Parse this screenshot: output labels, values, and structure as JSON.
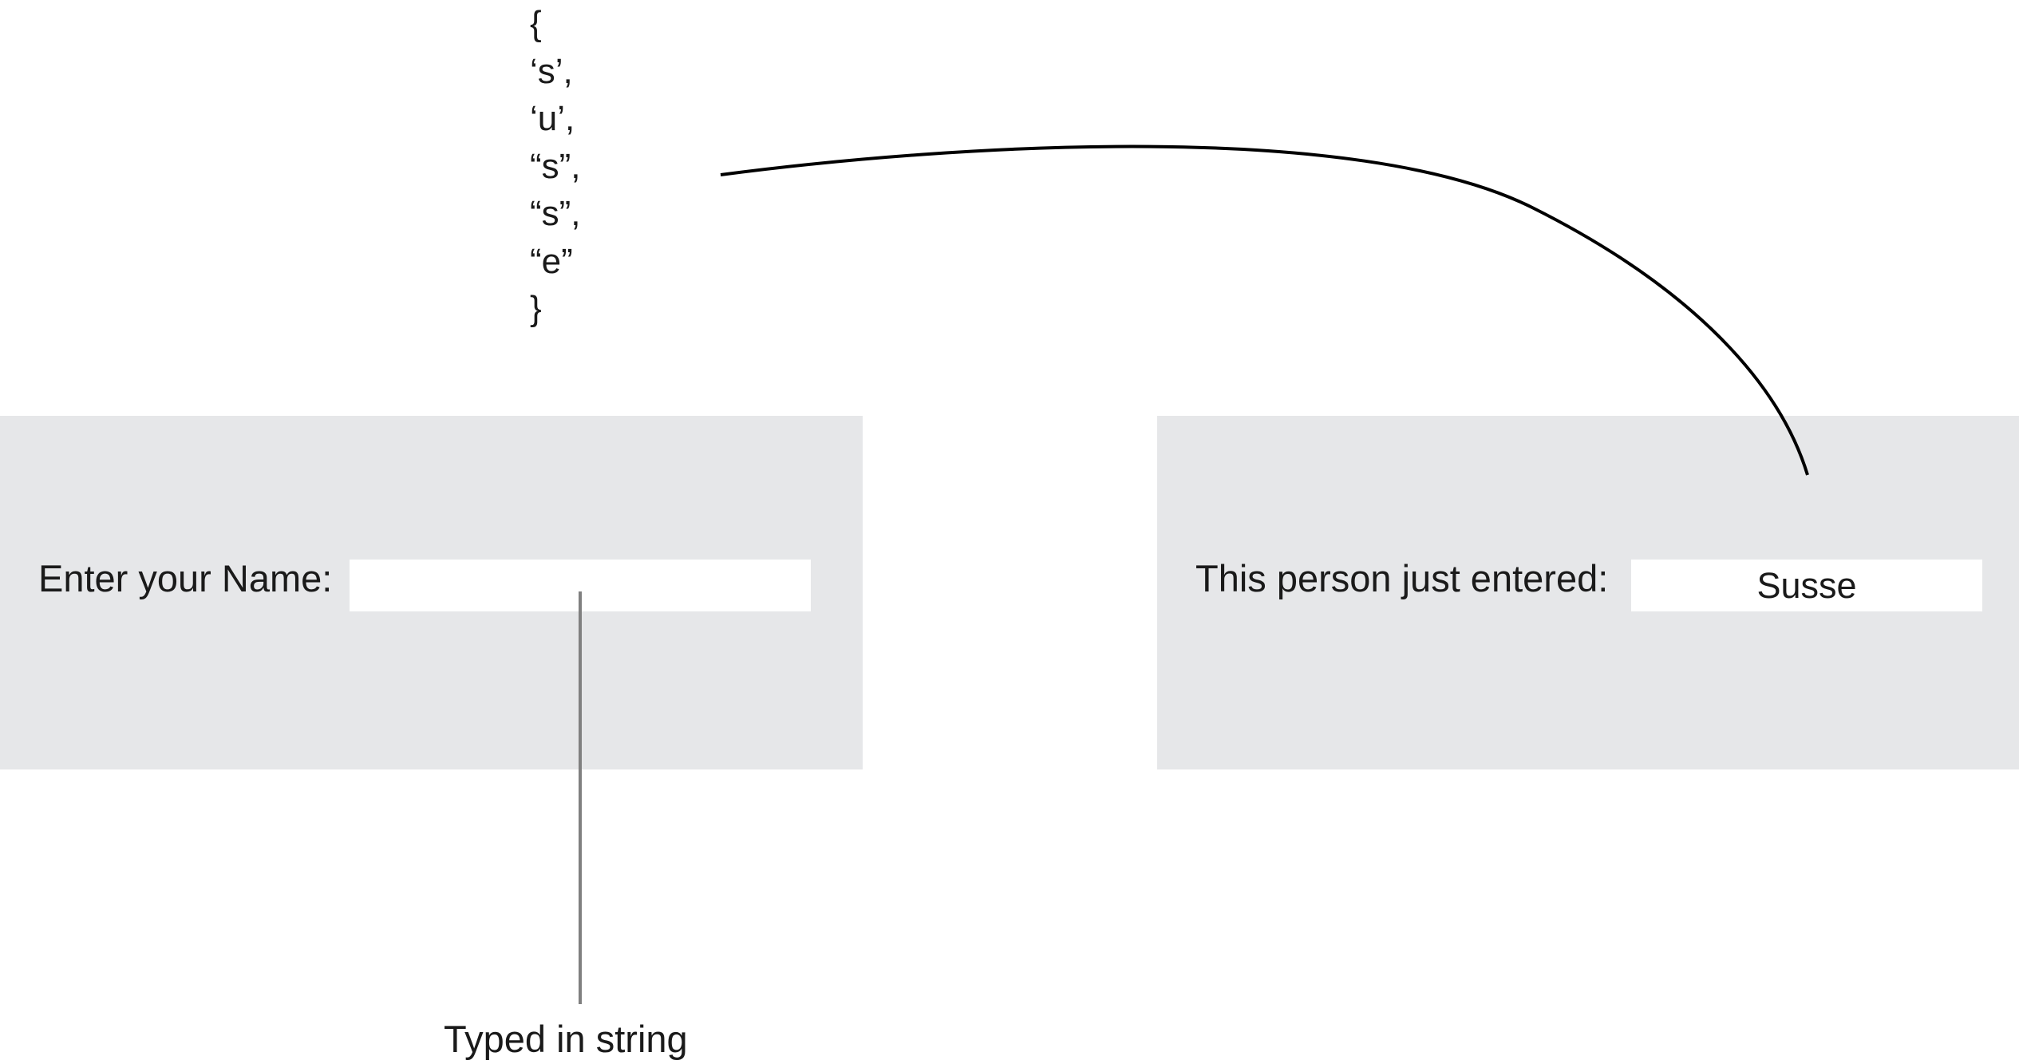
{
  "char_array": [
    "{",
    "‘s’,",
    "‘u’,",
    "“s”,",
    "“s”,",
    "“e”",
    "}"
  ],
  "input_panel": {
    "label": "Enter your Name:",
    "input_value": ""
  },
  "output_panel": {
    "label": "This person just entered:",
    "output_value": "Susse"
  },
  "caption": "Typed in string",
  "colors": {
    "panel_background": "#e6e7e9",
    "field_background": "#ffffff",
    "text": "#1a1a1a",
    "connector_curve": "#000000",
    "connector_line": "#808080"
  }
}
